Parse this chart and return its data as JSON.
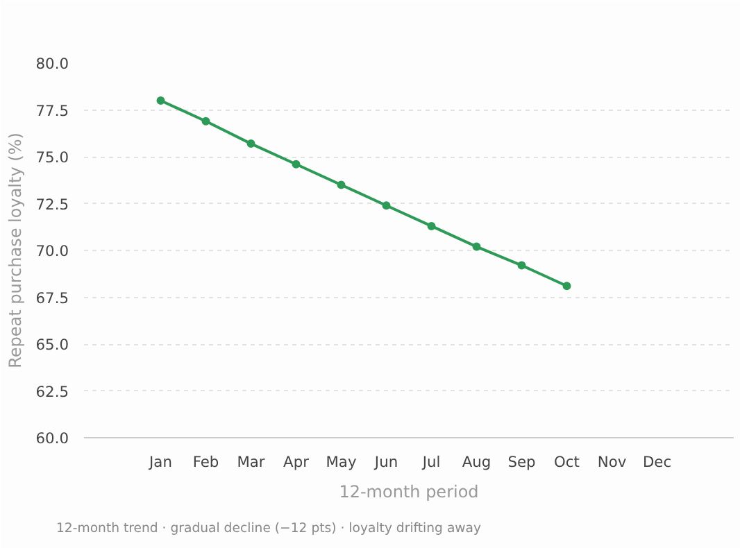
{
  "chart_data": {
    "type": "line",
    "xlabel": "12-month period",
    "ylabel": "Repeat purchase loyalty (%)",
    "categories": [
      "Jan",
      "Feb",
      "Mar",
      "Apr",
      "May",
      "Jun",
      "Jul",
      "Aug",
      "Sep",
      "Oct",
      "Nov",
      "Dec"
    ],
    "series": [
      {
        "color": "#2e9a57",
        "values": [
          78.0,
          76.9,
          75.7,
          74.6,
          73.5,
          72.4,
          71.3,
          70.2,
          69.2,
          68.1,
          null,
          null
        ]
      }
    ],
    "ylim": [
      60.0,
      80.0
    ],
    "yticks": [
      {
        "value": 60,
        "label": "60.0"
      },
      {
        "value": 62.5,
        "label": "62.5"
      },
      {
        "value": 65,
        "label": "65.0"
      },
      {
        "value": 67.5,
        "label": "67.5"
      },
      {
        "value": 70,
        "label": "70.0"
      },
      {
        "value": 72.5,
        "label": "72.5"
      },
      {
        "value": 75,
        "label": "75.0"
      },
      {
        "value": 77.5,
        "label": "77.5"
      },
      {
        "value": 80,
        "label": "80.0"
      }
    ],
    "grid": "y",
    "marker": "circle",
    "line_style": "solid",
    "annotations": [
      "12-month trend · gradual decline (−12 pts) · loyalty drifting away"
    ]
  }
}
